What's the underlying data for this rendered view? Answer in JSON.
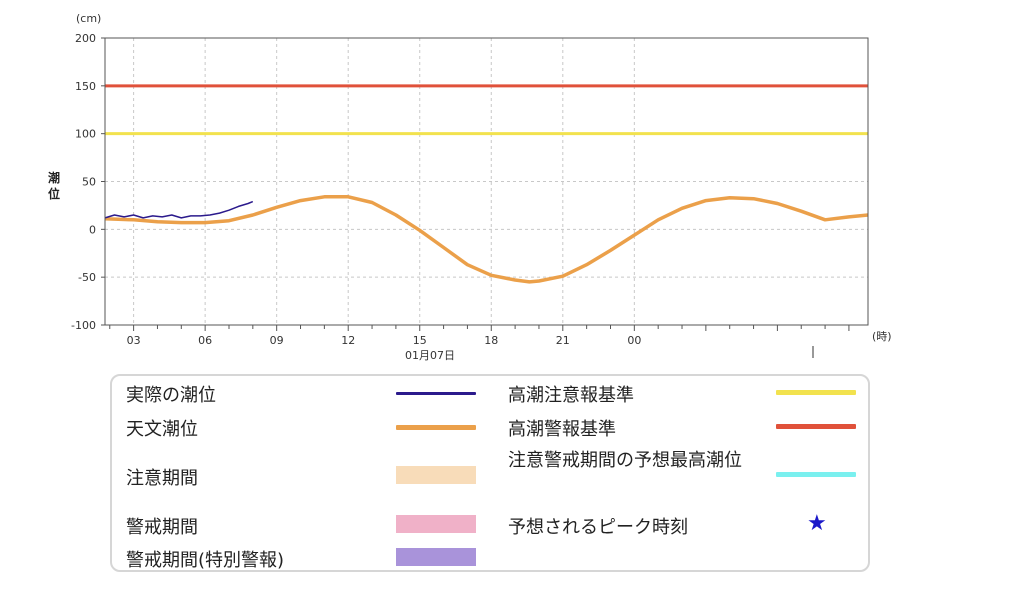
{
  "chart_data": {
    "type": "line",
    "yunit": "(cm)",
    "ylabel": "潮位",
    "xunit": "(時)",
    "date_label": "01月07日",
    "ylim": [
      -100,
      200
    ],
    "yticks": [
      200,
      150,
      100,
      50,
      0,
      -50,
      -100
    ],
    "xlim_hours": [
      1.8,
      33.8
    ],
    "xtick_labels": [
      {
        "label": "03",
        "hour": 3
      },
      {
        "label": "06",
        "hour": 6
      },
      {
        "label": "09",
        "hour": 9
      },
      {
        "label": "12",
        "hour": 12
      },
      {
        "label": "15",
        "hour": 15
      },
      {
        "label": "18",
        "hour": 18
      },
      {
        "label": "21",
        "hour": 21
      },
      {
        "label": "00",
        "hour": 24
      }
    ],
    "grid": true,
    "thresholds": [
      {
        "name": "高潮注意報基準",
        "value": 100,
        "color": "#f2e24e"
      },
      {
        "name": "高潮警報基準",
        "value": 150,
        "color": "#e0513a"
      }
    ],
    "series": [
      {
        "name": "天文潮位",
        "color": "#eba04a",
        "x": [
          1.8,
          3,
          4,
          5,
          6,
          7,
          8,
          9,
          10,
          11,
          12,
          13,
          14,
          15,
          16,
          17,
          18,
          19,
          19.6,
          20,
          21,
          22,
          23,
          24,
          25,
          26,
          27,
          28,
          29,
          30,
          31,
          32,
          33,
          33.8
        ],
        "y": [
          11,
          10,
          8,
          7,
          7,
          9,
          15,
          23,
          30,
          34,
          34,
          28,
          15,
          -1,
          -19,
          -37,
          -48,
          -53,
          -55,
          -54,
          -49,
          -37,
          -22,
          -6,
          10,
          22,
          30,
          33,
          32,
          27,
          19,
          10,
          13,
          15
        ]
      },
      {
        "name": "実際の潮位",
        "color": "#2b1a8c",
        "x": [
          1.8,
          2.2,
          2.6,
          3.0,
          3.4,
          3.8,
          4.2,
          4.6,
          5.0,
          5.4,
          5.8,
          6.2,
          6.6,
          7.0,
          7.4,
          7.8,
          8.0
        ],
        "y": [
          12,
          15,
          13,
          15,
          12,
          14,
          13,
          15,
          12,
          14,
          14,
          15,
          17,
          20,
          24,
          27,
          29
        ]
      }
    ]
  },
  "legend": {
    "items": [
      {
        "label": "実際の潮位",
        "color": "#2b1a8c",
        "kind": "line"
      },
      {
        "label": "天文潮位",
        "color": "#eba04a",
        "kind": "line"
      },
      {
        "label": "注意期間",
        "color": "#f8dcb9",
        "kind": "box"
      },
      {
        "label": "警戒期間",
        "color": "#f0b1c8",
        "kind": "box"
      },
      {
        "label": "警戒期間(特別警報)",
        "color": "#a993da",
        "kind": "box"
      },
      {
        "label": "高潮注意報基準",
        "color": "#f2e24e",
        "kind": "line"
      },
      {
        "label": "高潮警報基準",
        "color": "#e0513a",
        "kind": "line"
      },
      {
        "label": "注意警戒期間の予想最高潮位",
        "color": "#7af0ef",
        "kind": "line"
      },
      {
        "label": "予想されるピーク時刻",
        "color": "#1a18c9",
        "kind": "star",
        "icon": "star-icon"
      }
    ]
  }
}
